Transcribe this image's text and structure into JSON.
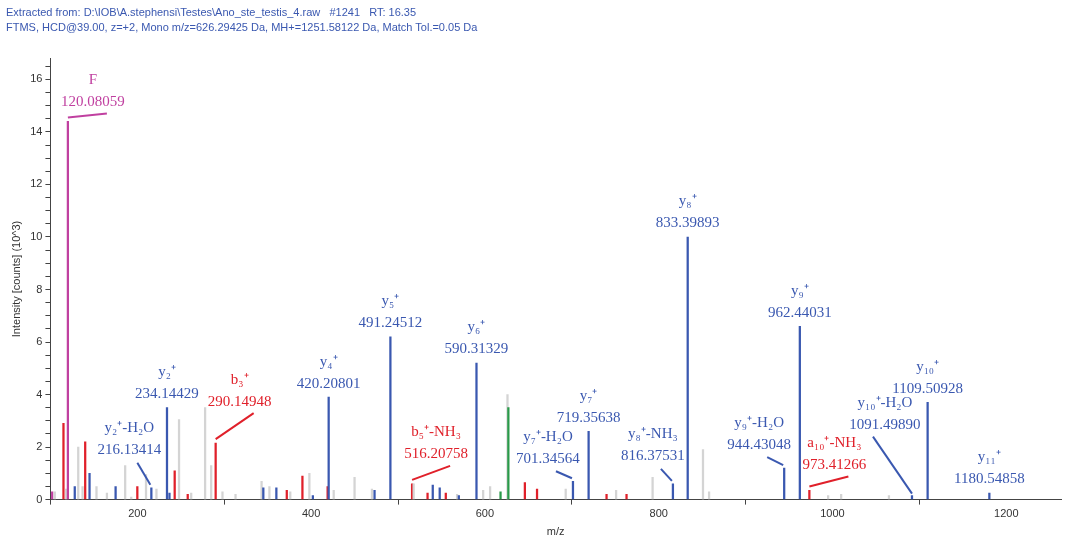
{
  "chart_data": {
    "type": "bar",
    "title": "Extracted from: D:\\IOB\\A.stephensi\\Testes\\Ano_ste_testis_4.raw   #1241   RT: 16.35",
    "subtitle": "FTMS, HCD@39.00, z=+2, Mono m/z=626.29425 Da, MH+=1251.58122 Da, Match Tol.=0.05 Da",
    "xlabel": "m/z",
    "ylabel": "Intensity [counts] (10^3)",
    "xlim": [
      100,
      1263
    ],
    "ylim": [
      0,
      16.8
    ],
    "xticks": [
      200,
      400,
      600,
      800,
      1000,
      1200
    ],
    "yticks": [
      0,
      {
        "value": 0.5,
        "label": null
      },
      {
        "value": 1,
        "label": null
      },
      {
        "value": 1.5,
        "label": null
      },
      2,
      {
        "value": 2.5,
        "label": null
      },
      {
        "value": 3,
        "label": null
      },
      {
        "value": 3.5,
        "label": null
      },
      4,
      {
        "value": 4.5,
        "label": null
      },
      {
        "value": 5,
        "label": null
      },
      {
        "value": 5.5,
        "label": null
      },
      6,
      {
        "value": 6.5,
        "label": null
      },
      {
        "value": 7,
        "label": null
      },
      {
        "value": 7.5,
        "label": null
      },
      8,
      {
        "value": 8.5,
        "label": null
      },
      {
        "value": 9,
        "label": null
      },
      {
        "value": 9.5,
        "label": null
      },
      10,
      {
        "value": 10.5,
        "label": null
      },
      {
        "value": 11,
        "label": null
      },
      {
        "value": 11.5,
        "label": null
      },
      12,
      {
        "value": 12.5,
        "label": null
      },
      {
        "value": 13,
        "label": null
      },
      {
        "value": 13.5,
        "label": null
      },
      14,
      {
        "value": 14.5,
        "label": null
      },
      {
        "value": 15,
        "label": null
      },
      {
        "value": 15.5,
        "label": null
      },
      16,
      {
        "value": 16.5,
        "label": null
      }
    ],
    "grid": false,
    "legend": false,
    "x": [
      102,
      105,
      115,
      118,
      120.08059,
      128,
      132,
      137,
      140,
      145,
      153,
      165,
      175,
      186,
      193,
      200,
      210,
      216.13414,
      222,
      234.14429,
      237,
      243,
      248,
      258,
      262,
      278,
      285,
      290.14948,
      298,
      313,
      343,
      345,
      352,
      360,
      372,
      376,
      390,
      398,
      402,
      419,
      420.20801,
      426,
      450,
      470,
      473,
      491.24512,
      516.20758,
      518,
      534,
      540,
      548,
      555,
      568,
      570,
      590.31329,
      598,
      606,
      618,
      626,
      627,
      646,
      660,
      693,
      701.34564,
      719.35638,
      740,
      751,
      763,
      793,
      816.37531,
      833.39893,
      851,
      858,
      944.43048,
      962.44031,
      973.41266,
      995,
      1010,
      1065,
      1091.4989,
      1109.50928,
      1180.54858
    ],
    "values": [
      0.3,
      0.3,
      2.9,
      0.4,
      14.4,
      0.5,
      2.0,
      0.5,
      2.2,
      1.0,
      0.5,
      0.25,
      0.5,
      1.3,
      0.1,
      0.5,
      0.95,
      0.45,
      0.4,
      3.5,
      0.25,
      1.1,
      3.05,
      0.2,
      0.25,
      3.5,
      1.3,
      2.15,
      0.3,
      0.2,
      0.7,
      0.45,
      0.5,
      0.45,
      0.35,
      0.3,
      0.9,
      1.0,
      0.15,
      0.5,
      3.9,
      0.35,
      0.85,
      0.4,
      0.35,
      6.2,
      0.6,
      0.6,
      0.25,
      0.55,
      0.45,
      0.25,
      0.2,
      0.15,
      5.2,
      0.35,
      0.5,
      0.3,
      4.0,
      3.5,
      0.65,
      0.4,
      0.4,
      0.7,
      2.6,
      0.2,
      0.35,
      0.2,
      0.85,
      0.6,
      10.0,
      1.9,
      0.3,
      1.2,
      6.6,
      0.35,
      0.15,
      0.2,
      0.15,
      0.15,
      3.7,
      0.25
    ],
    "colors": [
      "#c040a0",
      "#d4d4d4",
      "#e0202a",
      "#d4d4d4",
      "#c040a0",
      "#3a58b0",
      "#d4d4d4",
      "#d4d4d4",
      "#e0202a",
      "#3a58b0",
      "#d4d4d4",
      "#d4d4d4",
      "#3a58b0",
      "#d4d4d4",
      "#d4d4d4",
      "#e0202a",
      "#d4d4d4",
      "#3a58b0",
      "#d4d4d4",
      "#3a58b0",
      "#3a58b0",
      "#e0202a",
      "#d4d4d4",
      "#e0202a",
      "#d4d4d4",
      "#d4d4d4",
      "#d4d4d4",
      "#e0202a",
      "#d4d4d4",
      "#d4d4d4",
      "#d4d4d4",
      "#3a58b0",
      "#d4d4d4",
      "#3a58b0",
      "#e0202a",
      "#d4d4d4",
      "#e0202a",
      "#d4d4d4",
      "#3a58b0",
      "#e0202a",
      "#3a58b0",
      "#d4d4d4",
      "#d4d4d4",
      "#d4d4d4",
      "#3a58b0",
      "#3a58b0",
      "#e0202a",
      "#d4d4d4",
      "#e0202a",
      "#3a58b0",
      "#3a58b0",
      "#e0202a",
      "#d4d4d4",
      "#3a58b0",
      "#3a58b0",
      "#d4d4d4",
      "#d4d4d4",
      "#2a9a4a",
      "#d4d4d4",
      "#2a9a4a",
      "#e0202a",
      "#e0202a",
      "#d4d4d4",
      "#3a58b0",
      "#3a58b0",
      "#e0202a",
      "#d4d4d4",
      "#e0202a",
      "#d4d4d4",
      "#3a58b0",
      "#3a58b0",
      "#d4d4d4",
      "#d4d4d4",
      "#3a58b0",
      "#3a58b0",
      "#e0202a",
      "#d4d4d4",
      "#d4d4d4",
      "#d4d4d4",
      "#3a58b0",
      "#3a58b0",
      "#3a58b0"
    ],
    "annotations": [
      {
        "text": "F\n120.08059",
        "x": 120.08059,
        "y": 14.4
      },
      {
        "text": "y₂⁺-H₂O\n216.13414",
        "x": 216.13414,
        "y": 0.45
      },
      {
        "text": "y₂⁺\n234.14429",
        "x": 234.14429,
        "y": 3.5
      },
      {
        "text": "b₃⁺\n290.14948",
        "x": 290.14948,
        "y": 2.15
      },
      {
        "text": "y₄⁺\n420.20801",
        "x": 420.20801,
        "y": 3.9
      },
      {
        "text": "y₅⁺\n491.24512",
        "x": 491.24512,
        "y": 6.2
      },
      {
        "text": "b₅⁺-NH₃\n516.20758",
        "x": 516.20758,
        "y": 0.6
      },
      {
        "text": "y₆⁺\n590.31329",
        "x": 590.31329,
        "y": 5.2
      },
      {
        "text": "y₇⁺-H₂O\n701.34564",
        "x": 701.34564,
        "y": 0.7
      },
      {
        "text": "y₇⁺\n719.35638",
        "x": 719.35638,
        "y": 2.6
      },
      {
        "text": "y₈⁺-NH₃\n816.37531",
        "x": 816.37531,
        "y": 0.6
      },
      {
        "text": "y₈⁺\n833.39893",
        "x": 833.39893,
        "y": 10.0
      },
      {
        "text": "y₉⁺-H₂O\n944.43048",
        "x": 944.43048,
        "y": 1.2
      },
      {
        "text": "y₉⁺\n962.44031",
        "x": 962.44031,
        "y": 6.6
      },
      {
        "text": "a₁₀⁺-NH₃\n973.41266",
        "x": 973.41266,
        "y": 0.35
      },
      {
        "text": "y₁₀⁺-H₂O\n1091.49890",
        "x": 1091.4989,
        "y": 0.15
      },
      {
        "text": "y₁₀⁺\n1109.50928",
        "x": 1109.50928,
        "y": 3.7
      },
      {
        "text": "y₁₁⁺\n1180.54858",
        "x": 1180.54858,
        "y": 0.25
      }
    ]
  }
}
